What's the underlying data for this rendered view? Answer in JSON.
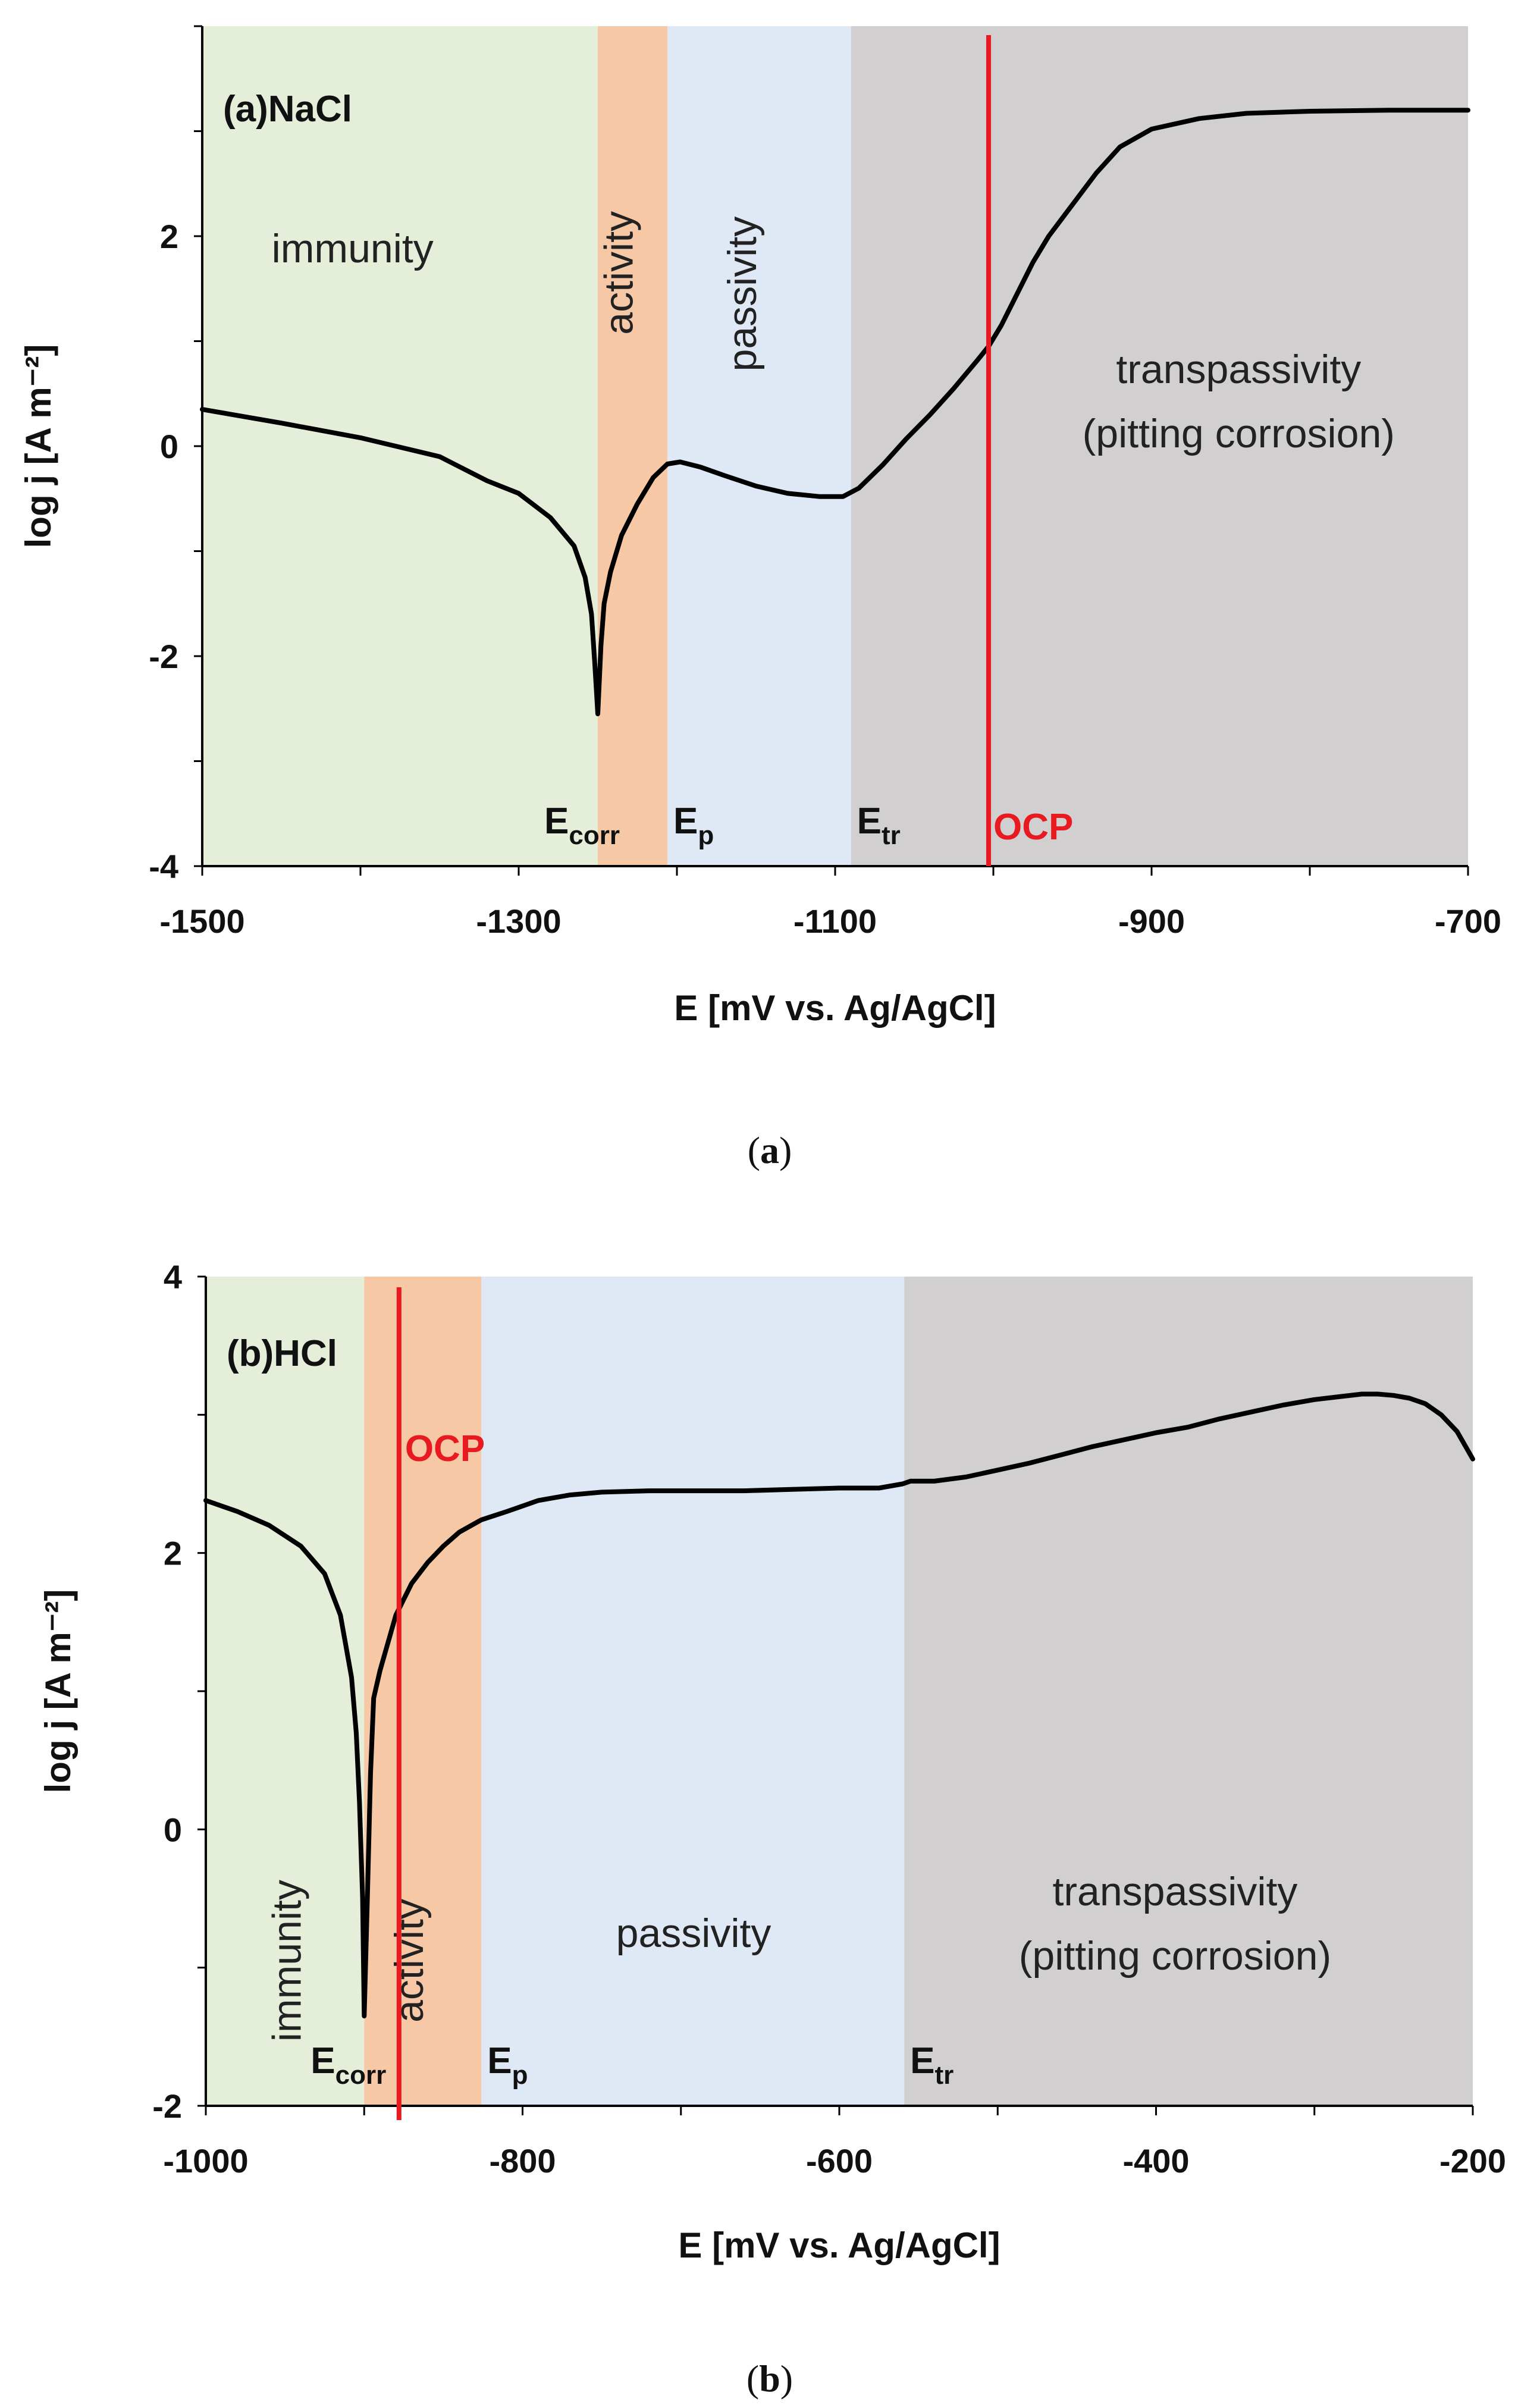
{
  "chart_data": [
    {
      "type": "line",
      "panel_label": "(a)NaCl",
      "caption": {
        "open": "(",
        "letter": "a",
        "close": ")"
      },
      "xlabel": "E [mV vs. Ag/AgCl]",
      "ylabel": "log j [A m⁻²]",
      "xlim": [
        -1500,
        -700
      ],
      "ylim": [
        -4,
        4
      ],
      "xticks": [
        -1500,
        -1300,
        -1100,
        -900,
        -700
      ],
      "yticks": [
        -4,
        -2,
        0,
        2
      ],
      "regions": [
        {
          "name": "immunity",
          "label": "immunity",
          "from": -1500,
          "to": -1250,
          "color": "#e4eed8",
          "label_x": -1405,
          "label_y": 1.75,
          "vertical": false
        },
        {
          "name": "activity",
          "label": "activity",
          "from": -1250,
          "to": -1206,
          "color": "#f6c8a6",
          "label_x": -1228,
          "label_y": 1.65,
          "vertical": true
        },
        {
          "name": "passivity",
          "label": "passivity",
          "from": -1206,
          "to": -1090,
          "color": "#dfe9f5",
          "label_x": -1150,
          "label_y": 1.45,
          "vertical": true
        },
        {
          "name": "transpassivity",
          "label": "transpassivity",
          "label2": "(pitting corrosion)",
          "from": -1090,
          "to": -700,
          "color": "#d1cfd0",
          "label_x": -845,
          "label_y": 0.6,
          "vertical": false
        }
      ],
      "markers": [
        {
          "name": "E-corr",
          "main": "E",
          "sub": "corr",
          "x": -1250
        },
        {
          "name": "E-p",
          "main": "E",
          "sub": "p",
          "x": -1206
        },
        {
          "name": "E-tr",
          "main": "E",
          "sub": "tr",
          "x": -1090
        }
      ],
      "ocp": {
        "label": "OCP",
        "x": -1003,
        "color": "#e8191f"
      },
      "series": [
        {
          "name": "polarization curve NaCl",
          "color": "#000000",
          "x": [
            -1500,
            -1450,
            -1400,
            -1350,
            -1320,
            -1300,
            -1280,
            -1265,
            -1258,
            -1254,
            -1252,
            -1250,
            -1248,
            -1246,
            -1242,
            -1235,
            -1225,
            -1215,
            -1206,
            -1198,
            -1185,
            -1170,
            -1150,
            -1130,
            -1110,
            -1095,
            -1085,
            -1070,
            -1055,
            -1040,
            -1025,
            -1010,
            -1003,
            -995,
            -985,
            -975,
            -965,
            -950,
            -935,
            -920,
            -900,
            -870,
            -840,
            -800,
            -750,
            -700
          ],
          "y": [
            0.35,
            0.22,
            0.08,
            -0.1,
            -0.33,
            -0.45,
            -0.68,
            -0.95,
            -1.25,
            -1.6,
            -2.05,
            -2.55,
            -1.9,
            -1.5,
            -1.2,
            -0.85,
            -0.55,
            -0.3,
            -0.17,
            -0.15,
            -0.2,
            -0.28,
            -0.38,
            -0.45,
            -0.48,
            -0.48,
            -0.4,
            -0.18,
            0.07,
            0.3,
            0.55,
            0.82,
            0.95,
            1.15,
            1.45,
            1.75,
            2.0,
            2.3,
            2.6,
            2.85,
            3.02,
            3.12,
            3.17,
            3.19,
            3.2,
            3.2
          ]
        }
      ]
    },
    {
      "type": "line",
      "panel_label": "(b)HCl",
      "caption": {
        "open": "(",
        "letter": "b",
        "close": ")"
      },
      "xlabel": "E [mV vs. Ag/AgCl]",
      "ylabel": "log j [A m⁻²]",
      "xlim": [
        -1000,
        -200
      ],
      "ylim": [
        -2,
        4
      ],
      "xticks": [
        -1000,
        -800,
        -600,
        -400,
        -200
      ],
      "yticks": [
        -2,
        0,
        2,
        4
      ],
      "regions": [
        {
          "name": "immunity",
          "label": "immunity",
          "from": -1000,
          "to": -900,
          "color": "#e4eed8",
          "label_x": -940,
          "label_y": -0.95,
          "vertical": true
        },
        {
          "name": "activity",
          "label": "activity",
          "from": -900,
          "to": -826,
          "color": "#f6c8a6",
          "label_x": -863,
          "label_y": -0.95,
          "vertical": true
        },
        {
          "name": "passivity",
          "label": "passivity",
          "from": -826,
          "to": -559,
          "color": "#dfe9f5",
          "label_x": -692,
          "label_y": -0.85,
          "vertical": false
        },
        {
          "name": "transpassivity",
          "label": "transpassivity",
          "label2": "(pitting corrosion)",
          "from": -559,
          "to": -200,
          "color": "#d1cfd0",
          "label_x": -388,
          "label_y": -0.55,
          "vertical": false
        }
      ],
      "markers": [
        {
          "name": "E-corr",
          "main": "E",
          "sub": "corr",
          "x": -900
        },
        {
          "name": "E-p",
          "main": "E",
          "sub": "p",
          "x": -826
        },
        {
          "name": "E-tr",
          "main": "E",
          "sub": "tr",
          "x": -559
        }
      ],
      "ocp": {
        "label": "OCP",
        "x": -878,
        "color": "#e8191f"
      },
      "series": [
        {
          "name": "polarization curve HCl",
          "color": "#000000",
          "x": [
            -1000,
            -980,
            -960,
            -940,
            -925,
            -915,
            -908,
            -905,
            -903,
            -901,
            -900,
            -898,
            -896,
            -894,
            -890,
            -885,
            -880,
            -870,
            -860,
            -850,
            -840,
            -826,
            -810,
            -790,
            -770,
            -750,
            -720,
            -690,
            -660,
            -630,
            -600,
            -575,
            -560,
            -555,
            -540,
            -520,
            -500,
            -480,
            -460,
            -440,
            -420,
            -400,
            -380,
            -360,
            -340,
            -320,
            -300,
            -285,
            -270,
            -260,
            -250,
            -240,
            -230,
            -220,
            -210,
            -200
          ],
          "y": [
            2.38,
            2.3,
            2.2,
            2.05,
            1.85,
            1.55,
            1.1,
            0.7,
            0.2,
            -0.5,
            -1.35,
            -0.5,
            0.4,
            0.95,
            1.15,
            1.35,
            1.55,
            1.78,
            1.93,
            2.05,
            2.15,
            2.24,
            2.3,
            2.38,
            2.42,
            2.44,
            2.45,
            2.45,
            2.45,
            2.46,
            2.47,
            2.47,
            2.5,
            2.52,
            2.52,
            2.55,
            2.6,
            2.65,
            2.71,
            2.77,
            2.82,
            2.87,
            2.91,
            2.97,
            3.02,
            3.07,
            3.11,
            3.13,
            3.15,
            3.15,
            3.14,
            3.12,
            3.08,
            3.0,
            2.88,
            2.68
          ]
        }
      ]
    }
  ]
}
